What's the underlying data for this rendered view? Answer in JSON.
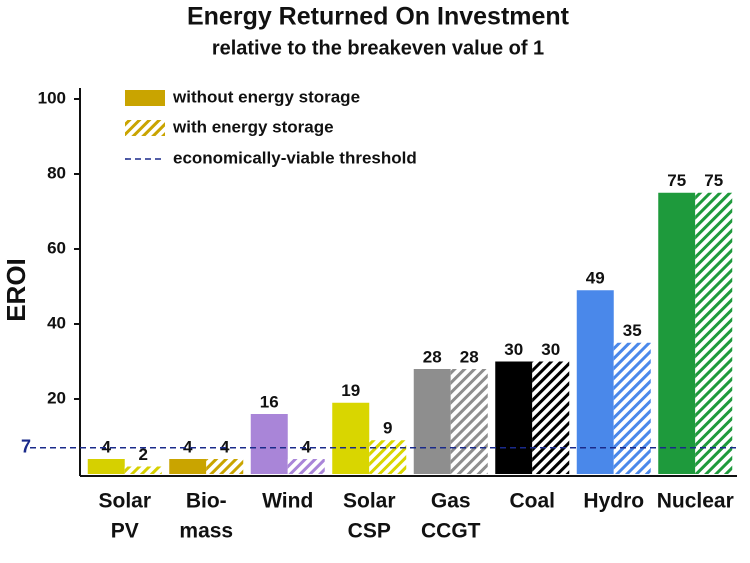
{
  "chart_data": {
    "type": "bar",
    "title": "Energy Returned On Investment",
    "subtitle": "relative to the breakeven value of 1",
    "y_label": "EROI",
    "categories": [
      [
        "Solar",
        "PV"
      ],
      [
        "Bio-",
        "mass"
      ],
      [
        "Wind"
      ],
      [
        "Solar",
        "CSP"
      ],
      [
        "Gas",
        "CCGT"
      ],
      [
        "Coal"
      ],
      [
        "Hydro"
      ],
      [
        "Nuclear"
      ]
    ],
    "category_colors": [
      "#d6d000",
      "#c9a400",
      "#a985d8",
      "#d9d600",
      "#8e8e8e",
      "#000000",
      "#4a88ea",
      "#1e9a3c"
    ],
    "series": [
      {
        "name": "without energy storage",
        "color": "#c9a400",
        "values": [
          4,
          4,
          16,
          19,
          28,
          30,
          49,
          75
        ]
      },
      {
        "name": "with energy storage",
        "color": "#c9a400",
        "hatched": true,
        "values": [
          2,
          4,
          4,
          9,
          28,
          30,
          35,
          75
        ]
      }
    ],
    "threshold": 7,
    "threshold_name": "economically-viable threshold",
    "threshold_color": "#1a2a8a",
    "ylim": [
      0,
      100
    ],
    "yticks": [
      20,
      40,
      60,
      80,
      100
    ]
  }
}
